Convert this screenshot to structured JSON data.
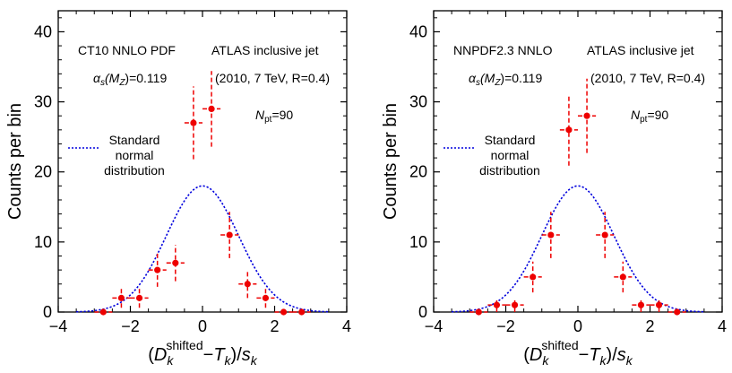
{
  "chart_data": [
    {
      "type": "scatter",
      "xlim": [
        -4,
        4
      ],
      "ylim": [
        0,
        43
      ],
      "xticks": [
        -4,
        -2,
        0,
        2,
        4
      ],
      "yticks": [
        0,
        10,
        20,
        30,
        40
      ],
      "xlabel": "(D_k^shifted − T_k)/s_k",
      "xlabel_parts": {
        "open": "(",
        "D": "D",
        "sub_k": "k",
        "sup": "shifted",
        "minus": "−",
        "T": "T",
        "close": ")/",
        "s": "s"
      },
      "ylabel": "Counts per bin",
      "annotations": {
        "pdf": "CT10 NNLO PDF",
        "dataset": "ATLAS inclusive jet",
        "dataset_detail": "(2010, 7 TeV, R=0.4)",
        "alpha_prefix": "α",
        "alpha_sub": "s",
        "alpha_arg": "(M",
        "alpha_arg_sub": "Z",
        "alpha_value": ")=0.119",
        "npt_prefix": "N",
        "npt_sub": "pt",
        "npt_value": "=90"
      },
      "legend": {
        "placement": "left",
        "lines": [
          "Standard",
          "normal",
          "distribution"
        ],
        "color": "#0000dd"
      },
      "curve": {
        "type": "gaussian",
        "mean": 0,
        "sigma": 1,
        "peak": 18
      },
      "series": [
        {
          "color": "#ee0000",
          "bin_halfwidth": 0.25,
          "points": [
            {
              "x": -2.75,
              "y": 0,
              "err": 0
            },
            {
              "x": -2.25,
              "y": 2,
              "err": 1.4
            },
            {
              "x": -1.75,
              "y": 2,
              "err": 1.4
            },
            {
              "x": -1.25,
              "y": 6,
              "err": 2.4
            },
            {
              "x": -0.75,
              "y": 7,
              "err": 2.6
            },
            {
              "x": -0.25,
              "y": 27,
              "err": 5.2
            },
            {
              "x": 0.25,
              "y": 29,
              "err": 5.4
            },
            {
              "x": 0.75,
              "y": 11,
              "err": 3.3
            },
            {
              "x": 1.25,
              "y": 4,
              "err": 2.0
            },
            {
              "x": 1.75,
              "y": 2,
              "err": 1.4
            },
            {
              "x": 2.25,
              "y": 0,
              "err": 0
            },
            {
              "x": 2.75,
              "y": 0,
              "err": 0
            }
          ]
        }
      ]
    },
    {
      "type": "scatter",
      "xlim": [
        -4,
        4
      ],
      "ylim": [
        0,
        43
      ],
      "xticks": [
        -4,
        -2,
        0,
        2,
        4
      ],
      "yticks": [
        0,
        10,
        20,
        30,
        40
      ],
      "xlabel": "(D_k^shifted − T_k)/s_k",
      "xlabel_parts": {
        "open": "(",
        "D": "D",
        "sub_k": "k",
        "sup": "shifted",
        "minus": "−",
        "T": "T",
        "close": ")/",
        "s": "s"
      },
      "ylabel": "Counts per bin",
      "annotations": {
        "pdf": "NNPDF2.3 NNLO",
        "dataset": "ATLAS inclusive jet",
        "dataset_detail": "(2010, 7 TeV, R=0.4)",
        "alpha_prefix": "α",
        "alpha_sub": "s",
        "alpha_arg": "(M",
        "alpha_arg_sub": "Z",
        "alpha_value": ")=0.119",
        "npt_prefix": "N",
        "npt_sub": "pt",
        "npt_value": "=90"
      },
      "legend": {
        "placement": "left",
        "lines": [
          "Standard",
          "normal",
          "distribution"
        ],
        "color": "#0000dd"
      },
      "curve": {
        "type": "gaussian",
        "mean": 0,
        "sigma": 1,
        "peak": 18
      },
      "series": [
        {
          "color": "#ee0000",
          "bin_halfwidth": 0.25,
          "points": [
            {
              "x": -2.75,
              "y": 0,
              "err": 0
            },
            {
              "x": -2.25,
              "y": 1,
              "err": 1.0
            },
            {
              "x": -1.75,
              "y": 1,
              "err": 1.0
            },
            {
              "x": -1.25,
              "y": 5,
              "err": 2.2
            },
            {
              "x": -0.75,
              "y": 11,
              "err": 3.3
            },
            {
              "x": -0.25,
              "y": 26,
              "err": 5.1
            },
            {
              "x": 0.25,
              "y": 28,
              "err": 5.3
            },
            {
              "x": 0.75,
              "y": 11,
              "err": 3.3
            },
            {
              "x": 1.25,
              "y": 5,
              "err": 2.2
            },
            {
              "x": 1.75,
              "y": 1,
              "err": 1.0
            },
            {
              "x": 2.25,
              "y": 1,
              "err": 1.0
            },
            {
              "x": 2.75,
              "y": 0,
              "err": 0
            }
          ]
        }
      ]
    }
  ]
}
